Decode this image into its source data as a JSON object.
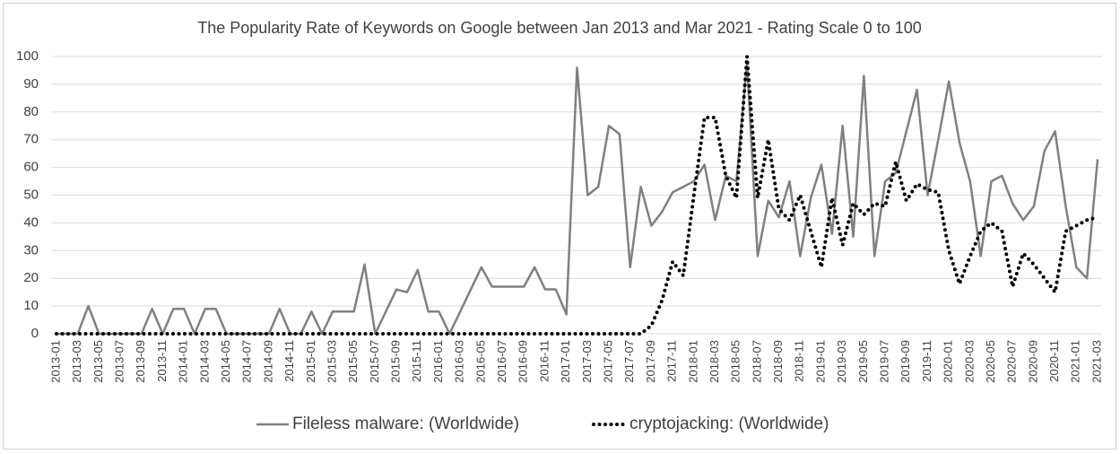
{
  "chart_data": {
    "type": "line",
    "title": "The Popularity Rate of Keywords on Google between Jan 2013  and Mar 2021  - Rating Scale 0 to 100",
    "categories": [
      "2013-01",
      null,
      "2013-03",
      null,
      "2013-05",
      null,
      "2013-07",
      null,
      "2013-09",
      null,
      "2013-11",
      null,
      "2014-01",
      null,
      "2014-03",
      null,
      "2014-05",
      null,
      "2014-07",
      null,
      "2014-09",
      null,
      "2014-11",
      null,
      "2015-01",
      null,
      "2015-03",
      null,
      "2015-05",
      null,
      "2015-07",
      null,
      "2015-09",
      null,
      "2015-11",
      null,
      "2016-01",
      null,
      "2016-03",
      null,
      "2016-05",
      null,
      "2016-07",
      null,
      "2016-09",
      null,
      "2016-11",
      null,
      "2017-01",
      null,
      "2017-03",
      null,
      "2017-05",
      null,
      "2017-07",
      null,
      "2017-09",
      null,
      "2017-11",
      null,
      "2018-01",
      null,
      "2018-03",
      null,
      "2018-05",
      null,
      "2018-07",
      null,
      "2018-09",
      null,
      "2018-11",
      null,
      "2019-01",
      null,
      "2019-03",
      null,
      "2019-05",
      null,
      "2019-07",
      null,
      "2019-09",
      null,
      "2019-11",
      null,
      "2020-01",
      null,
      "2020-03",
      null,
      "2020-05",
      null,
      "2020-07",
      null,
      "2020-09",
      null,
      "2020-11",
      null,
      "2021-01",
      null,
      "2021-03"
    ],
    "series": [
      {
        "name": "Fileless malware: (Worldwide)",
        "color": "#808080",
        "style": "solid",
        "values": [
          0,
          0,
          0,
          10,
          0,
          0,
          0,
          0,
          0,
          9,
          0,
          9,
          9,
          0,
          9,
          9,
          0,
          0,
          0,
          0,
          0,
          9,
          0,
          0,
          8,
          0,
          8,
          8,
          8,
          25,
          0,
          8,
          16,
          15,
          23,
          8,
          8,
          0,
          8,
          16,
          24,
          17,
          17,
          17,
          17,
          24,
          16,
          16,
          7,
          96,
          50,
          53,
          75,
          72,
          24,
          53,
          39,
          44,
          51,
          53,
          55,
          61,
          41,
          57,
          55,
          98,
          28,
          48,
          42,
          55,
          28,
          49,
          61,
          36,
          75,
          35,
          93,
          28,
          55,
          58,
          73,
          88,
          50,
          70,
          91,
          69,
          55,
          28,
          55,
          57,
          47,
          41,
          46,
          66,
          73,
          46,
          24,
          20,
          63
        ]
      },
      {
        "name": "cryptojacking: (Worldwide)",
        "color": "#000000",
        "style": "dotted",
        "values": [
          0,
          0,
          0,
          0,
          0,
          0,
          0,
          0,
          0,
          0,
          0,
          0,
          0,
          0,
          0,
          0,
          0,
          0,
          0,
          0,
          0,
          0,
          0,
          0,
          0,
          0,
          0,
          0,
          0,
          0,
          0,
          0,
          0,
          0,
          0,
          0,
          0,
          0,
          0,
          0,
          0,
          0,
          0,
          0,
          0,
          0,
          0,
          0,
          0,
          0,
          0,
          0,
          0,
          0,
          0,
          0,
          3,
          12,
          26,
          21,
          50,
          78,
          78,
          57,
          49,
          100,
          49,
          70,
          45,
          41,
          50,
          37,
          24,
          49,
          32,
          47,
          43,
          47,
          46,
          62,
          48,
          54,
          52,
          51,
          30,
          18,
          28,
          37,
          40,
          37,
          17,
          29,
          25,
          20,
          15,
          37,
          39,
          41,
          42
        ]
      }
    ],
    "ylim": [
      0,
      100
    ],
    "yticks": [
      0,
      10,
      20,
      30,
      40,
      50,
      60,
      70,
      80,
      90,
      100
    ],
    "grid": true,
    "legend": "bottom"
  }
}
